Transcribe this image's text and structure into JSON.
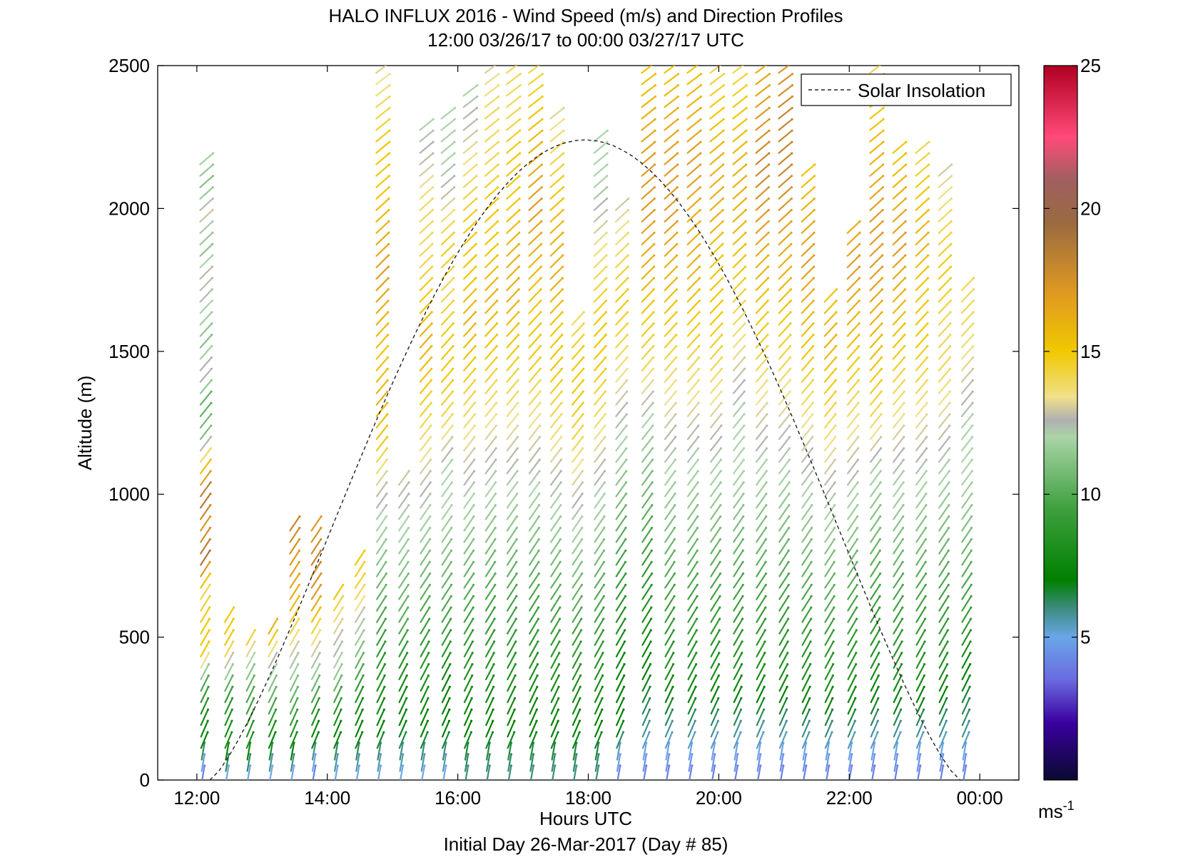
{
  "chart_data": {
    "type": "wind-barb-profile",
    "title": "HALO INFLUX 2016 - Wind Speed (m/s) and Direction Profiles",
    "subtitle": "12:00 03/26/17 to 00:00 03/27/17  UTC",
    "xlabel": "Hours UTC",
    "footer": "Initial Day 26-Mar-2017 (Day # 85)",
    "ylabel": "Altitude (m)",
    "x_range_hours": [
      11.4,
      24.6
    ],
    "y_range_m": [
      0,
      2500
    ],
    "x_ticks": [
      {
        "hour": 12,
        "label": "12:00"
      },
      {
        "hour": 14,
        "label": "14:00"
      },
      {
        "hour": 16,
        "label": "16:00"
      },
      {
        "hour": 18,
        "label": "18:00"
      },
      {
        "hour": 20,
        "label": "20:00"
      },
      {
        "hour": 22,
        "label": "22:00"
      },
      {
        "hour": 24,
        "label": "00:00"
      }
    ],
    "y_ticks": [
      {
        "value": 0,
        "label": "0"
      },
      {
        "value": 500,
        "label": "500"
      },
      {
        "value": 1000,
        "label": "1000"
      },
      {
        "value": 1500,
        "label": "1500"
      },
      {
        "value": 2000,
        "label": "2000"
      },
      {
        "value": 2500,
        "label": "2500"
      }
    ],
    "legend": {
      "label": "Solar Insolation",
      "placement": "top-right",
      "style": "dashed black"
    },
    "solar_insolation": {
      "peak_hour": 18.0,
      "peak_altitude_m": 2240,
      "start_hour": 12.2,
      "end_hour": 23.7
    },
    "colorbar": {
      "range": [
        0,
        25
      ],
      "ticks": [
        {
          "value": 5,
          "label": "5"
        },
        {
          "value": 10,
          "label": "10"
        },
        {
          "value": 15,
          "label": "15"
        },
        {
          "value": 20,
          "label": "20"
        },
        {
          "value": 25,
          "label": "25"
        }
      ],
      "unit": "ms",
      "unit_exp": "-1",
      "stops": [
        {
          "v": 0,
          "c": "#0a0a30"
        },
        {
          "v": 2,
          "c": "#3a00a0"
        },
        {
          "v": 3.5,
          "c": "#6a6ae0"
        },
        {
          "v": 5,
          "c": "#6aa6e8"
        },
        {
          "v": 6,
          "c": "#3c8c80"
        },
        {
          "v": 7,
          "c": "#008000"
        },
        {
          "v": 9.5,
          "c": "#3ea03e"
        },
        {
          "v": 12,
          "c": "#aad4a8"
        },
        {
          "v": 12.6,
          "c": "#b0b0b0"
        },
        {
          "v": 13.4,
          "c": "#f0e08a"
        },
        {
          "v": 15,
          "c": "#f0c800"
        },
        {
          "v": 17,
          "c": "#e09a20"
        },
        {
          "v": 19.5,
          "c": "#9a6a40"
        },
        {
          "v": 21,
          "c": "#a06060"
        },
        {
          "v": 22.5,
          "c": "#ff4a7a"
        },
        {
          "v": 25,
          "c": "#b00020"
        }
      ]
    },
    "profiles": [
      {
        "hour": 12.08,
        "top_m": 2180,
        "speeds": [
          4,
          7,
          8,
          10,
          15,
          15,
          14,
          19,
          17,
          19,
          15,
          11,
          10,
          13,
          11,
          12,
          13,
          11,
          13,
          11,
          12
        ]
      },
      {
        "hour": 12.45,
        "top_m": 560,
        "speeds": [
          5,
          8,
          8,
          9,
          12,
          15,
          15
        ]
      },
      {
        "hour": 12.78,
        "top_m": 500,
        "speeds": [
          5,
          8,
          9,
          10,
          12,
          15
        ]
      },
      {
        "hour": 13.12,
        "top_m": 520,
        "speeds": [
          5,
          7,
          9,
          11,
          13,
          16
        ]
      },
      {
        "hour": 13.45,
        "top_m": 880,
        "speeds": [
          5,
          8,
          10,
          12,
          14,
          16,
          17,
          18
        ]
      },
      {
        "hour": 13.78,
        "top_m": 880,
        "speeds": [
          4,
          7,
          9,
          12,
          14,
          17,
          18,
          17
        ]
      },
      {
        "hour": 14.12,
        "top_m": 640,
        "speeds": [
          5,
          7,
          9,
          12,
          13,
          15
        ]
      },
      {
        "hour": 14.45,
        "top_m": 760,
        "speeds": [
          5,
          7,
          8,
          10,
          12,
          14,
          15
        ]
      },
      {
        "hour": 14.78,
        "top_m": 2500,
        "speeds": [
          5,
          7,
          8,
          9,
          10,
          11,
          12,
          13,
          15,
          16,
          15,
          16,
          17,
          16,
          15,
          15,
          14,
          13
        ]
      },
      {
        "hour": 15.12,
        "top_m": 1050,
        "speeds": [
          5,
          7,
          8,
          10,
          11,
          12,
          13
        ]
      },
      {
        "hour": 15.45,
        "top_m": 2280,
        "speeds": [
          5,
          7,
          8,
          9,
          10,
          11,
          12,
          13,
          14,
          15,
          16,
          15,
          14,
          14,
          13,
          12
        ]
      },
      {
        "hour": 15.78,
        "top_m": 2320,
        "speeds": [
          5,
          7,
          7,
          9,
          10,
          11,
          12,
          12,
          14,
          15,
          15,
          14,
          15,
          13,
          12,
          12
        ]
      },
      {
        "hour": 16.12,
        "top_m": 2400,
        "speeds": [
          6,
          7,
          8,
          9,
          10,
          11,
          12,
          13,
          14,
          15,
          16,
          15,
          15,
          14,
          13,
          12
        ]
      },
      {
        "hour": 16.45,
        "top_m": 2500,
        "speeds": [
          6,
          7,
          8,
          9,
          10,
          11,
          12,
          13,
          14,
          15,
          16,
          15,
          15,
          14,
          14,
          13
        ]
      },
      {
        "hour": 16.78,
        "top_m": 2500,
        "speeds": [
          6,
          7,
          8,
          9,
          10,
          11,
          12,
          13,
          14,
          15,
          16,
          16,
          15,
          15,
          14,
          14
        ]
      },
      {
        "hour": 17.12,
        "top_m": 2500,
        "speeds": [
          6,
          7,
          8,
          9,
          10,
          11,
          12,
          13,
          14,
          15,
          15,
          16,
          17,
          16,
          15,
          14
        ]
      },
      {
        "hour": 17.45,
        "top_m": 2350,
        "speeds": [
          6,
          7,
          8,
          9,
          10,
          11,
          12,
          13,
          14,
          15,
          15,
          16,
          16,
          15,
          14,
          13
        ]
      },
      {
        "hour": 17.78,
        "top_m": 1600,
        "speeds": [
          6,
          7,
          8,
          9,
          10,
          11,
          12,
          13,
          14,
          15,
          15,
          14
        ]
      },
      {
        "hour": 18.12,
        "top_m": 2250,
        "speeds": [
          6,
          7,
          8,
          9,
          10,
          11,
          12,
          13,
          14,
          15,
          15,
          14,
          13,
          12,
          12
        ]
      },
      {
        "hour": 18.45,
        "top_m": 2000,
        "speeds": [
          4,
          7,
          7,
          8,
          9,
          10,
          11,
          12,
          13,
          14,
          15,
          14,
          13
        ]
      },
      {
        "hour": 18.85,
        "top_m": 2500,
        "speeds": [
          4,
          6,
          7,
          8,
          9,
          10,
          11,
          12,
          14,
          15,
          16,
          17,
          17,
          16,
          15
        ]
      },
      {
        "hour": 19.2,
        "top_m": 2500,
        "speeds": [
          4,
          6,
          8,
          9,
          10,
          11,
          12,
          13,
          14,
          15,
          16,
          17,
          17,
          16,
          15
        ]
      },
      {
        "hour": 19.55,
        "top_m": 2500,
        "speeds": [
          4,
          6,
          8,
          9,
          10,
          11,
          12,
          13,
          14,
          15,
          16,
          16,
          17,
          16,
          15
        ]
      },
      {
        "hour": 19.9,
        "top_m": 2500,
        "speeds": [
          4,
          6,
          8,
          9,
          10,
          11,
          12,
          13,
          14,
          15,
          15,
          16,
          16,
          15,
          14
        ]
      },
      {
        "hour": 20.25,
        "top_m": 2500,
        "speeds": [
          4,
          6,
          8,
          9,
          10,
          11,
          12,
          12,
          13,
          14,
          15,
          16,
          16,
          15,
          14
        ]
      },
      {
        "hour": 20.6,
        "top_m": 2500,
        "speeds": [
          4,
          6,
          8,
          9,
          10,
          11,
          12,
          13,
          14,
          15,
          16,
          17,
          18,
          17,
          16
        ]
      },
      {
        "hour": 20.95,
        "top_m": 2500,
        "speeds": [
          4,
          6,
          8,
          9,
          10,
          11,
          12,
          13,
          14,
          15,
          16,
          17,
          18,
          18,
          17
        ]
      },
      {
        "hour": 21.3,
        "top_m": 2150,
        "speeds": [
          4,
          6,
          8,
          9,
          10,
          11,
          12,
          13,
          14,
          15,
          16,
          17,
          16,
          15
        ]
      },
      {
        "hour": 21.65,
        "top_m": 1700,
        "speeds": [
          4,
          6,
          8,
          9,
          10,
          11,
          12,
          13,
          14,
          15,
          16,
          15
        ]
      },
      {
        "hour": 22.0,
        "top_m": 1950,
        "speeds": [
          4,
          6,
          8,
          9,
          10,
          11,
          12,
          13,
          14,
          15,
          16,
          17,
          16
        ]
      },
      {
        "hour": 22.35,
        "top_m": 2500,
        "speeds": [
          4,
          6,
          8,
          9,
          10,
          11,
          12,
          14,
          15,
          16,
          17,
          17,
          16,
          15,
          14
        ]
      },
      {
        "hour": 22.7,
        "top_m": 2200,
        "speeds": [
          4,
          6,
          8,
          9,
          10,
          11,
          12,
          13,
          14,
          15,
          16,
          17,
          16,
          15
        ]
      },
      {
        "hour": 23.05,
        "top_m": 2220,
        "speeds": [
          4,
          6,
          8,
          9,
          10,
          11,
          12,
          13,
          14,
          15,
          15,
          16,
          15,
          14
        ]
      },
      {
        "hour": 23.4,
        "top_m": 2120,
        "speeds": [
          4,
          6,
          8,
          9,
          10,
          11,
          12,
          13,
          14,
          14,
          15,
          14,
          13
        ]
      },
      {
        "hour": 23.75,
        "top_m": 1750,
        "speeds": [
          4,
          6,
          7,
          9,
          10,
          11,
          12,
          12,
          13,
          14,
          14
        ]
      }
    ]
  }
}
